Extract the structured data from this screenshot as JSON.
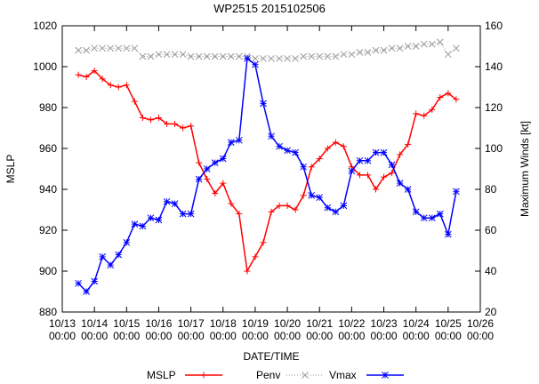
{
  "chart_data": {
    "type": "line",
    "title": "WP2515 2015102506",
    "xlabel": "DATE/TIME",
    "ylabel_left": "MSLP",
    "ylabel_right": "Maximum Winds [kt]",
    "ylim_left": [
      880,
      1020
    ],
    "ylim_right": [
      20,
      160
    ],
    "yticks_left": [
      "880",
      "900",
      "920",
      "940",
      "960",
      "980",
      "1000",
      "1020"
    ],
    "yticks_right": [
      "20",
      "40",
      "60",
      "80",
      "100",
      "120",
      "140",
      "160"
    ],
    "x_range_days": [
      13,
      26
    ],
    "x_tick_days": [
      13,
      14,
      15,
      16,
      17,
      18,
      19,
      20,
      21,
      22,
      23,
      24,
      25,
      26
    ],
    "x_tick_labels": [
      [
        "10/13",
        "00:00"
      ],
      [
        "10/14",
        "00:00"
      ],
      [
        "10/15",
        "00:00"
      ],
      [
        "10/16",
        "00:00"
      ],
      [
        "10/17",
        "00:00"
      ],
      [
        "10/18",
        "00:00"
      ],
      [
        "10/19",
        "00:00"
      ],
      [
        "10/20",
        "00:00"
      ],
      [
        "10/21",
        "00:00"
      ],
      [
        "10/22",
        "00:00"
      ],
      [
        "10/23",
        "00:00"
      ],
      [
        "10/24",
        "00:00"
      ],
      [
        "10/25",
        "00:00"
      ],
      [
        "10/26",
        "00:00"
      ]
    ],
    "series": [
      {
        "name": "MSLP",
        "axis": "left",
        "color": "#ff0000",
        "marker": "plus",
        "style": "solid",
        "x": [
          13.5,
          13.75,
          14.0,
          14.25,
          14.5,
          14.75,
          15.0,
          15.25,
          15.5,
          15.75,
          16.0,
          16.25,
          16.5,
          16.75,
          17.0,
          17.25,
          17.5,
          17.75,
          18.0,
          18.25,
          18.5,
          18.75,
          19.0,
          19.25,
          19.5,
          19.75,
          20.0,
          20.25,
          20.5,
          20.75,
          21.0,
          21.25,
          21.5,
          21.75,
          22.0,
          22.25,
          22.5,
          22.75,
          23.0,
          23.25,
          23.5,
          23.75,
          24.0,
          24.25,
          24.5,
          24.75,
          25.0,
          25.25
        ],
        "values": [
          996,
          995,
          998,
          994,
          991,
          990,
          991,
          983,
          975,
          974,
          975,
          972,
          972,
          970,
          971,
          953,
          945,
          938,
          943,
          933,
          928,
          900,
          907,
          914,
          929,
          932,
          932,
          930,
          937,
          951,
          955,
          960,
          963,
          961,
          951,
          947,
          947,
          940,
          946,
          948,
          957,
          962,
          977,
          976,
          979,
          985,
          987,
          984
        ]
      },
      {
        "name": "Penv",
        "axis": "left",
        "color": "#999999",
        "marker": "x",
        "style": "dotted",
        "x": [
          13.5,
          13.75,
          14.0,
          14.25,
          14.5,
          14.75,
          15.0,
          15.25,
          15.5,
          15.75,
          16.0,
          16.25,
          16.5,
          16.75,
          17.0,
          17.25,
          17.5,
          17.75,
          18.0,
          18.25,
          18.5,
          18.75,
          19.0,
          19.25,
          19.5,
          19.75,
          20.0,
          20.25,
          20.5,
          20.75,
          21.0,
          21.25,
          21.5,
          21.75,
          22.0,
          22.25,
          22.5,
          22.75,
          23.0,
          23.25,
          23.5,
          23.75,
          24.0,
          24.25,
          24.5,
          24.75,
          25.0,
          25.25
        ],
        "values": [
          1008,
          1008,
          1009,
          1009,
          1009,
          1009,
          1009,
          1009,
          1005,
          1005,
          1006,
          1006,
          1006,
          1006,
          1005,
          1005,
          1005,
          1005,
          1005,
          1005,
          1005,
          1005,
          1004,
          1004,
          1004,
          1004,
          1004,
          1004,
          1005,
          1005,
          1005,
          1005,
          1005,
          1006,
          1006,
          1007,
          1007,
          1008,
          1008,
          1009,
          1009,
          1010,
          1010,
          1011,
          1011,
          1012,
          1006,
          1009
        ]
      },
      {
        "name": "Vmax",
        "axis": "right",
        "color": "#0000ff",
        "marker": "star",
        "style": "solid",
        "x": [
          13.5,
          13.75,
          14.0,
          14.25,
          14.5,
          14.75,
          15.0,
          15.25,
          15.5,
          15.75,
          16.0,
          16.25,
          16.5,
          16.75,
          17.0,
          17.25,
          17.5,
          17.75,
          18.0,
          18.25,
          18.5,
          18.75,
          19.0,
          19.25,
          19.5,
          19.75,
          20.0,
          20.25,
          20.5,
          20.75,
          21.0,
          21.25,
          21.5,
          21.75,
          22.0,
          22.25,
          22.5,
          22.75,
          23.0,
          23.25,
          23.5,
          23.75,
          24.0,
          24.25,
          24.5,
          24.75,
          25.0,
          25.25
        ],
        "values": [
          34,
          30,
          35,
          47,
          43,
          48,
          54,
          63,
          62,
          66,
          65,
          74,
          73,
          68,
          68,
          85,
          90,
          93,
          95,
          103,
          104,
          144,
          141,
          122,
          106,
          101,
          99,
          98,
          91,
          77,
          76,
          71,
          69,
          72,
          89,
          94,
          94,
          98,
          98,
          92,
          83,
          80,
          69,
          66,
          66,
          68,
          58,
          79
        ]
      }
    ],
    "legend_position": "bottom"
  }
}
